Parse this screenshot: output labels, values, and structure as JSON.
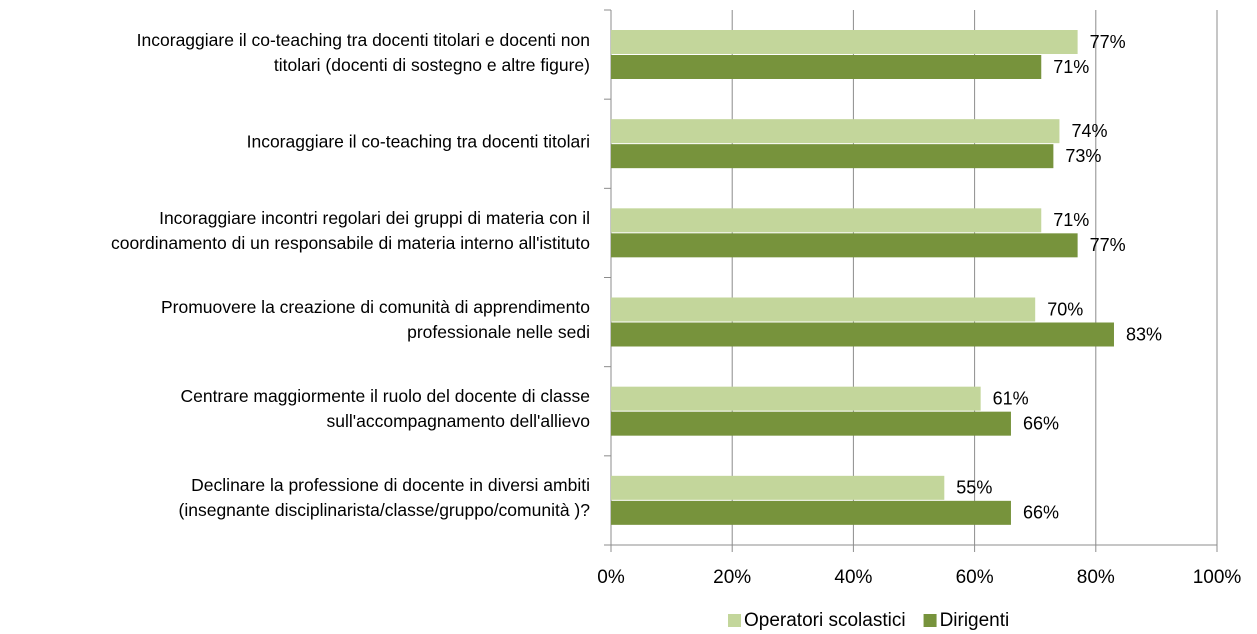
{
  "chart_data": {
    "type": "bar",
    "orientation": "horizontal",
    "categories": [
      "Incoraggiare il co-teaching tra docenti titolari e docenti non\ntitolari (docenti di sostegno e altre figure)",
      "Incoraggiare il co-teaching tra docenti titolari",
      "Incoraggiare incontri regolari dei gruppi di materia con il\ncoordinamento di un responsabile di materia interno all'istituto",
      "Promuovere la creazione di comunità  di apprendimento\nprofessionale nelle sedi",
      "Centrare maggiormente il ruolo del docente di classe\nsull'accompagnamento dell'allievo",
      "Declinare la professione di docente in diversi ambiti\n(insegnante disciplinarista/classe/gruppo/comunità )?"
    ],
    "series": [
      {
        "name": "Operatori scolastici",
        "color": "#c3d69b",
        "values": [
          77,
          74,
          71,
          70,
          61,
          55
        ],
        "value_labels": [
          "77%",
          "74%",
          "71%",
          "70%",
          "61%",
          "55%"
        ]
      },
      {
        "name": "Dirigenti",
        "color": "#77933c",
        "values": [
          71,
          73,
          77,
          83,
          66,
          66
        ],
        "value_labels": [
          "71%",
          "73%",
          "77%",
          "83%",
          "66%",
          "66%"
        ]
      }
    ],
    "xlim": [
      0,
      100
    ],
    "xticks": [
      {
        "value": 0,
        "label": "0%"
      },
      {
        "value": 20,
        "label": "20%"
      },
      {
        "value": 40,
        "label": "40%"
      },
      {
        "value": 60,
        "label": "60%"
      },
      {
        "value": 80,
        "label": "80%"
      },
      {
        "value": 100,
        "label": "100%"
      }
    ],
    "grid": true,
    "legend": "bottom"
  }
}
